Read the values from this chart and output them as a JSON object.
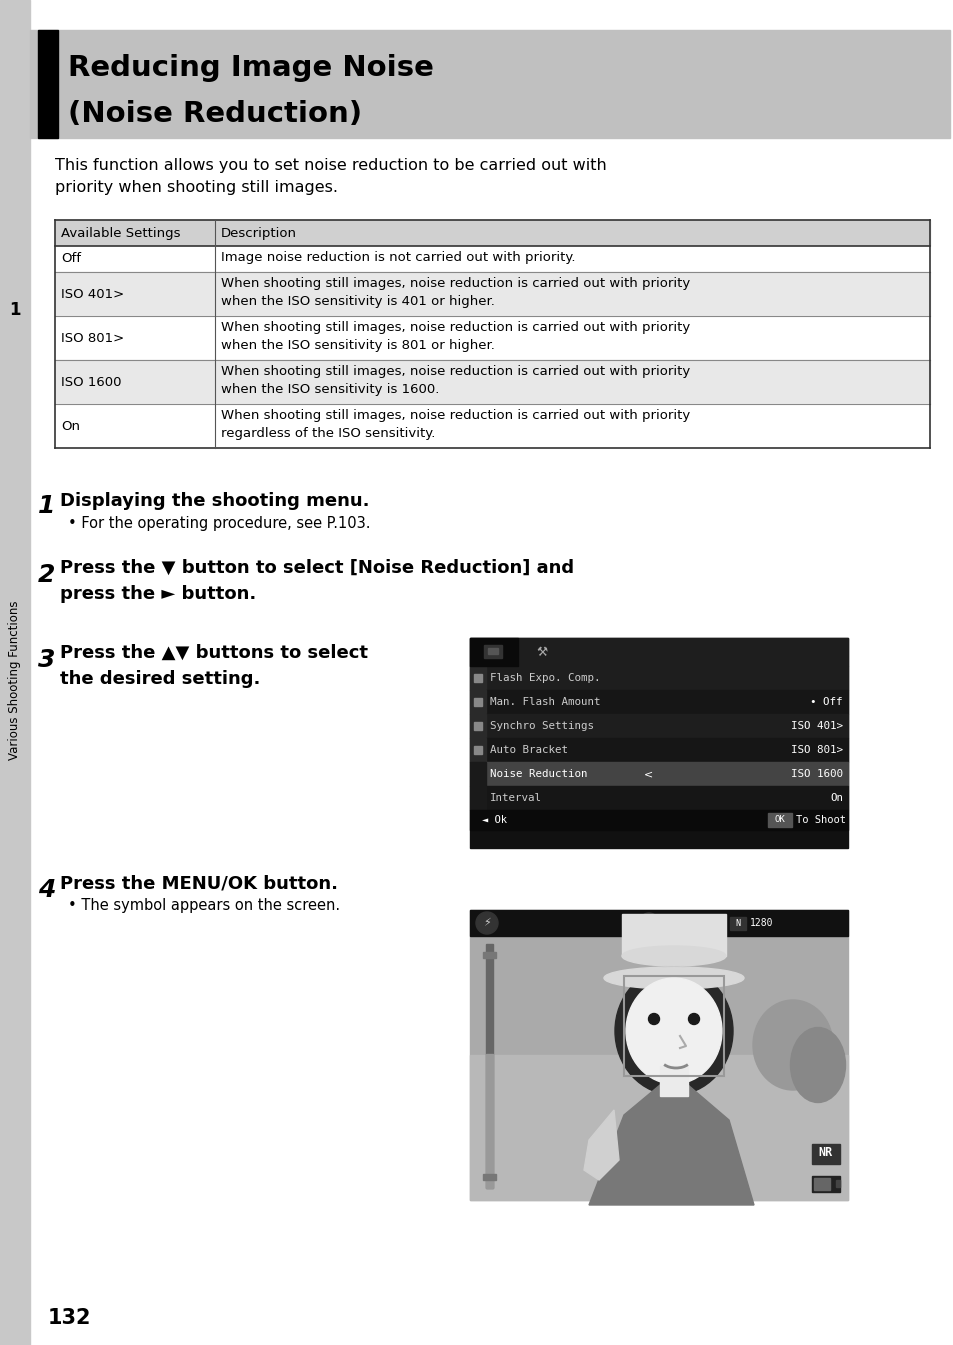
{
  "title_line1": "Reducing Image Noise",
  "title_line2": "(Noise Reduction)",
  "title_bg": "#c0c0c0",
  "title_bar_color": "#000000",
  "intro_text1": "This function allows you to set noise reduction to be carried out with",
  "intro_text2": "priority when shooting still images.",
  "table_header": [
    "Available Settings",
    "Description"
  ],
  "table_rows": [
    [
      "Off",
      "Image noise reduction is not carried out with priority."
    ],
    [
      "ISO 401>",
      "When shooting still images, noise reduction is carried out with priority\nwhen the ISO sensitivity is 401 or higher."
    ],
    [
      "ISO 801>",
      "When shooting still images, noise reduction is carried out with priority\nwhen the ISO sensitivity is 801 or higher."
    ],
    [
      "ISO 1600",
      "When shooting still images, noise reduction is carried out with priority\nwhen the ISO sensitivity is 1600."
    ],
    [
      "On",
      "When shooting still images, noise reduction is carried out with priority\nregardless of the ISO sensitivity."
    ]
  ],
  "step1_text": "Displaying the shooting menu.",
  "step1_sub": "For the operating procedure, see P.103.",
  "step2_text": "Press the ▼ button to select [Noise Reduction] and\npress the ► button.",
  "step3_text": "Press the ▲▼ buttons to select\nthe desired setting.",
  "step4_text": "Press the MENU/OK button.",
  "step4_sub": "The symbol appears on the screen.",
  "sidebar_text": "Various Shooting Functions",
  "sidebar_num": "1",
  "page_num": "132",
  "bg_color": "#ffffff"
}
